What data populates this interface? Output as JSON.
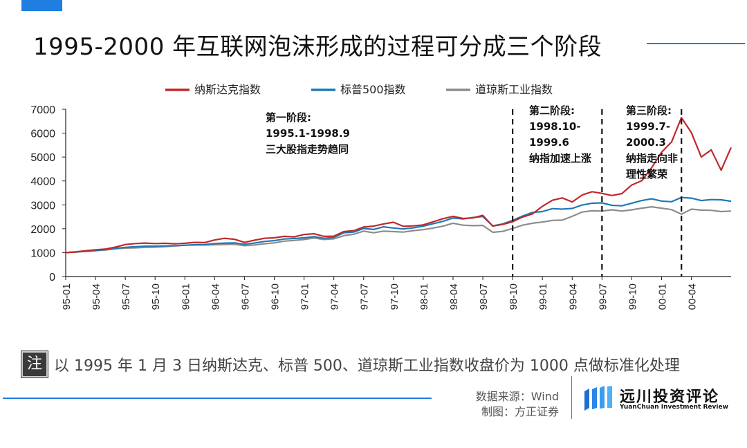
{
  "title": "1995-2000 年互联网泡沫形成的过程可分成三个阶段",
  "note_icon": "注",
  "note": "以 1995 年 1 月 3 日纳斯达克、标普 500、道琼斯工业指数收盘价为 1000 点做标准化处理",
  "source_line1": "数据来源：Wind",
  "source_line2": "制图：方正证券",
  "logo": {
    "name": "远川投资评论",
    "en": "YuanChuan Investment Review",
    "icon": "yuanchuan-logo-icon"
  },
  "colors": {
    "nasdaq": "#c0282b",
    "sp500": "#1f78b4",
    "dow": "#8c8c8c",
    "accent": "#1f7ee0"
  },
  "chart_data": {
    "type": "line",
    "title": "",
    "xlabel": "",
    "ylabel": "",
    "ylim": [
      0,
      7000
    ],
    "yticks": [
      "0",
      "1000",
      "2000",
      "3000",
      "4000",
      "5000",
      "6000",
      "7000"
    ],
    "xticks": [
      "95-01",
      "95-04",
      "95-07",
      "95-10",
      "96-01",
      "96-04",
      "96-07",
      "96-10",
      "97-01",
      "97-04",
      "97-07",
      "97-10",
      "98-01",
      "98-04",
      "98-07",
      "98-10",
      "99-01",
      "99-04",
      "99-07",
      "99-10",
      "00-01",
      "00-04"
    ],
    "grid": false,
    "legend": "top",
    "x": [
      "95-01",
      "95-02",
      "95-03",
      "95-04",
      "95-05",
      "95-06",
      "95-07",
      "95-08",
      "95-09",
      "95-10",
      "95-11",
      "95-12",
      "96-01",
      "96-02",
      "96-03",
      "96-04",
      "96-05",
      "96-06",
      "96-07",
      "96-08",
      "96-09",
      "96-10",
      "96-11",
      "96-12",
      "97-01",
      "97-02",
      "97-03",
      "97-04",
      "97-05",
      "97-06",
      "97-07",
      "97-08",
      "97-09",
      "97-10",
      "97-11",
      "97-12",
      "98-01",
      "98-02",
      "98-03",
      "98-04",
      "98-05",
      "98-06",
      "98-07",
      "98-08",
      "98-09",
      "98-10",
      "98-11",
      "98-12",
      "99-01",
      "99-02",
      "99-03",
      "99-04",
      "99-05",
      "99-06",
      "99-07",
      "99-08",
      "99-09",
      "99-10",
      "99-11",
      "99-12",
      "00-01",
      "00-02",
      "00-03",
      "00-04",
      "00-05",
      "00-06",
      "00-07",
      "00-08"
    ],
    "series": [
      {
        "name": "纳斯达克指数",
        "values": [
          1000,
          1030,
          1080,
          1120,
          1150,
          1230,
          1340,
          1380,
          1400,
          1380,
          1390,
          1370,
          1390,
          1430,
          1420,
          1530,
          1600,
          1560,
          1430,
          1520,
          1600,
          1620,
          1680,
          1660,
          1760,
          1790,
          1680,
          1690,
          1880,
          1920,
          2070,
          2110,
          2200,
          2270,
          2100,
          2120,
          2160,
          2290,
          2420,
          2520,
          2430,
          2450,
          2560,
          2110,
          2180,
          2290,
          2490,
          2620,
          2940,
          3190,
          3290,
          3120,
          3410,
          3550,
          3480,
          3390,
          3470,
          3830,
          4010,
          4550,
          5200,
          5630,
          6650,
          6020,
          5000,
          5300,
          4450,
          5400
        ]
      },
      {
        "name": "标普500指数",
        "values": [
          1000,
          1030,
          1060,
          1090,
          1130,
          1180,
          1220,
          1250,
          1270,
          1270,
          1280,
          1290,
          1310,
          1330,
          1340,
          1380,
          1400,
          1410,
          1350,
          1400,
          1470,
          1500,
          1570,
          1590,
          1620,
          1670,
          1600,
          1640,
          1830,
          1860,
          2010,
          1970,
          2080,
          2030,
          1990,
          2040,
          2110,
          2210,
          2310,
          2450,
          2410,
          2470,
          2510,
          2120,
          2200,
          2350,
          2530,
          2680,
          2720,
          2840,
          2820,
          2850,
          2990,
          3070,
          3080,
          2980,
          2960,
          3070,
          3180,
          3250,
          3160,
          3130,
          3310,
          3280,
          3180,
          3220,
          3210,
          3150
        ]
      },
      {
        "name": "道琼斯工业指数",
        "values": [
          1000,
          1020,
          1050,
          1080,
          1110,
          1160,
          1190,
          1200,
          1220,
          1230,
          1250,
          1280,
          1310,
          1320,
          1320,
          1330,
          1340,
          1350,
          1290,
          1320,
          1370,
          1410,
          1480,
          1510,
          1550,
          1610,
          1550,
          1580,
          1710,
          1770,
          1900,
          1830,
          1900,
          1880,
          1860,
          1920,
          1960,
          2030,
          2110,
          2230,
          2150,
          2130,
          2140,
          1850,
          1890,
          2010,
          2150,
          2230,
          2280,
          2350,
          2360,
          2520,
          2700,
          2750,
          2740,
          2790,
          2740,
          2790,
          2860,
          2920,
          2860,
          2800,
          2610,
          2820,
          2780,
          2770,
          2720,
          2740
        ]
      }
    ],
    "phase_dividers": [
      "98-10",
      "99-07",
      "00-03"
    ],
    "annotations": [
      {
        "lines": [
          "第一阶段:",
          "1995.1-1998.9",
          "三大股指走势趋同"
        ]
      },
      {
        "lines": [
          "第二阶段:",
          "1998.10-",
          "1999.6",
          "纳指加速上涨"
        ]
      },
      {
        "lines": [
          "第三阶段:",
          "1999.7-",
          "2000.3",
          "纳指走向非",
          "理性繁荣"
        ]
      }
    ]
  }
}
